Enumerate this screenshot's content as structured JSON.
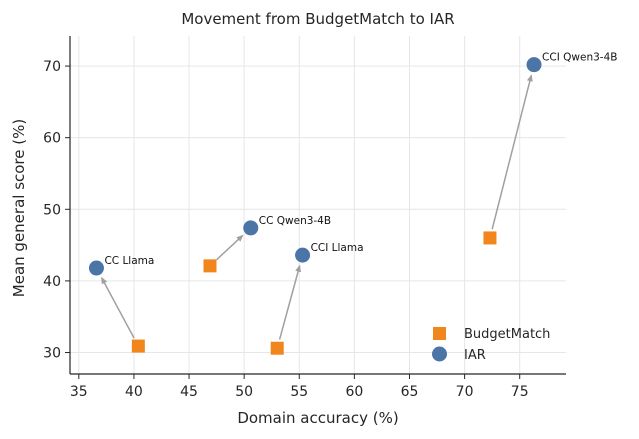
{
  "chart_data": {
    "type": "scatter",
    "title": "Movement from BudgetMatch to IAR",
    "xlabel": "Domain accuracy (%)",
    "ylabel": "Mean general score (%)",
    "xlim": [
      34.2,
      79.2
    ],
    "ylim": [
      27.0,
      74.2
    ],
    "xticks": [
      35,
      40,
      45,
      50,
      55,
      60,
      65,
      70,
      75
    ],
    "yticks": [
      30,
      40,
      50,
      60,
      70
    ],
    "grid": true,
    "legend_placement": "lower-right",
    "series": [
      {
        "name": "BudgetMatch",
        "marker": "square",
        "color": "#f0861c",
        "points": [
          {
            "x": 40.4,
            "y": 30.9
          },
          {
            "x": 46.9,
            "y": 42.1
          },
          {
            "x": 53.0,
            "y": 30.6
          },
          {
            "x": 72.3,
            "y": 46.0
          }
        ]
      },
      {
        "name": "IAR",
        "marker": "circle",
        "color": "#4b74a7",
        "points": [
          {
            "x": 36.6,
            "y": 41.8,
            "label": "CC Llama"
          },
          {
            "x": 50.6,
            "y": 47.4,
            "label": "CC Qwen3-4B"
          },
          {
            "x": 55.3,
            "y": 43.6,
            "label": "CCI Llama"
          },
          {
            "x": 76.3,
            "y": 70.2,
            "label": "CCI Qwen3-4B"
          }
        ]
      }
    ],
    "arrows": [
      {
        "from": [
          40.4,
          30.9
        ],
        "to": [
          36.6,
          41.8
        ]
      },
      {
        "from": [
          46.9,
          42.1
        ],
        "to": [
          50.6,
          47.4
        ]
      },
      {
        "from": [
          53.0,
          30.6
        ],
        "to": [
          55.3,
          43.6
        ]
      },
      {
        "from": [
          72.3,
          46.0
        ],
        "to": [
          76.3,
          70.2
        ]
      }
    ],
    "arrow_color": "#a0a0a0",
    "grid_color": "#e6e6e6"
  }
}
